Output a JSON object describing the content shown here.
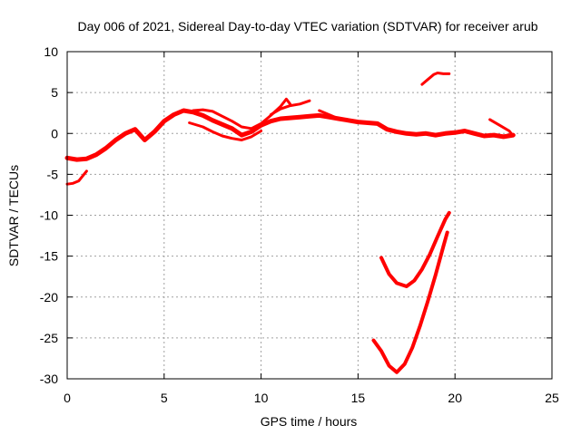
{
  "chart_data": {
    "type": "line",
    "title": "Day 006 of 2021, Sidereal Day-to-day VTEC variation (SDTVAR) for receiver arub",
    "xlabel": "GPS time / hours",
    "ylabel": "SDTVAR / TECUs",
    "xlim": [
      0,
      25
    ],
    "ylim": [
      -30,
      10
    ],
    "xticks": [
      0,
      5,
      10,
      15,
      20,
      25
    ],
    "yticks": [
      -30,
      -25,
      -20,
      -15,
      -10,
      -5,
      0,
      5,
      10
    ],
    "grid": true,
    "color": "#ff0000",
    "series": [
      {
        "name": "main-band",
        "x": [
          0,
          0.5,
          1,
          1.5,
          2,
          2.5,
          3,
          3.5,
          4,
          4.5,
          5,
          5.5,
          6,
          6.5,
          7,
          7.5,
          8,
          8.5,
          9,
          9.5,
          10,
          10.5,
          11,
          11.5,
          12,
          12.5,
          13,
          13.5,
          14,
          14.5,
          15,
          15.5,
          16,
          16.5,
          17,
          17.5,
          18,
          18.5,
          19,
          19.5,
          20,
          20.5,
          21,
          21.5,
          22,
          22.5,
          23
        ],
        "y": [
          -3,
          -3.2,
          -3.1,
          -2.6,
          -1.8,
          -0.8,
          0,
          0.5,
          -0.8,
          0.2,
          1.5,
          2.3,
          2.8,
          2.6,
          2.2,
          1.6,
          1.1,
          0.6,
          -0.2,
          0.2,
          1,
          1.5,
          1.8,
          1.9,
          2,
          2.1,
          2.2,
          2,
          1.8,
          1.6,
          1.4,
          1.3,
          1.2,
          0.5,
          0.2,
          0,
          -0.1,
          0,
          -0.2,
          0,
          0.1,
          0.3,
          0,
          -0.3,
          -0.2,
          -0.4,
          -0.2
        ],
        "width": 5
      },
      {
        "name": "upper-branch",
        "x": [
          6.5,
          7,
          7.5,
          8,
          8.5,
          9,
          9.5,
          10,
          10.5,
          11,
          11.3,
          11.5
        ],
        "y": [
          2.8,
          2.9,
          2.7,
          2.1,
          1.5,
          0.8,
          0.6,
          1.2,
          2.2,
          3.3,
          4.2,
          3.6
        ],
        "width": 3
      },
      {
        "name": "lower-branch",
        "x": [
          6.3,
          7,
          7.5,
          8,
          8.5,
          9,
          9.5,
          10
        ],
        "y": [
          1.3,
          0.8,
          0.2,
          -0.3,
          -0.6,
          -0.8,
          -0.4,
          0.3
        ],
        "width": 3
      },
      {
        "name": "upper-branch-2",
        "x": [
          10.5,
          11,
          11.5,
          12,
          12.5
        ],
        "y": [
          2.3,
          3.0,
          3.4,
          3.6,
          4.0
        ],
        "width": 3
      },
      {
        "name": "secondary-branch",
        "x": [
          13,
          13.5,
          14
        ],
        "y": [
          2.8,
          2.3,
          1.8
        ],
        "width": 3
      },
      {
        "name": "right-branch",
        "x": [
          21.8,
          22.3,
          22.8,
          23
        ],
        "y": [
          1.7,
          1.0,
          0.3,
          -0.3
        ],
        "width": 3
      },
      {
        "name": "lower-start",
        "x": [
          0,
          0.3,
          0.6,
          0.8,
          1.0
        ],
        "y": [
          -6.2,
          -6.1,
          -5.8,
          -5.2,
          -4.6
        ],
        "width": 3
      },
      {
        "name": "top-right-segment",
        "x": [
          18.3,
          18.6,
          18.9,
          19.1,
          19.4,
          19.7
        ],
        "y": [
          6.0,
          6.6,
          7.2,
          7.4,
          7.3,
          7.3
        ],
        "width": 3
      },
      {
        "name": "v-curve-upper",
        "x": [
          16.2,
          16.6,
          17.0,
          17.5,
          17.9,
          18.3,
          18.7,
          19.1,
          19.5,
          19.7
        ],
        "y": [
          -15.2,
          -17.2,
          -18.3,
          -18.7,
          -18.0,
          -16.6,
          -14.8,
          -12.6,
          -10.5,
          -9.7
        ],
        "width": 4
      },
      {
        "name": "v-curve-lower",
        "x": [
          15.8,
          16.2,
          16.6,
          17.0,
          17.4,
          17.8,
          18.2,
          18.6,
          19.0,
          19.4,
          19.6
        ],
        "y": [
          -25.3,
          -26.6,
          -28.4,
          -29.2,
          -28.2,
          -26.2,
          -23.5,
          -20.5,
          -17.3,
          -13.8,
          -12.1
        ],
        "width": 4
      }
    ]
  }
}
